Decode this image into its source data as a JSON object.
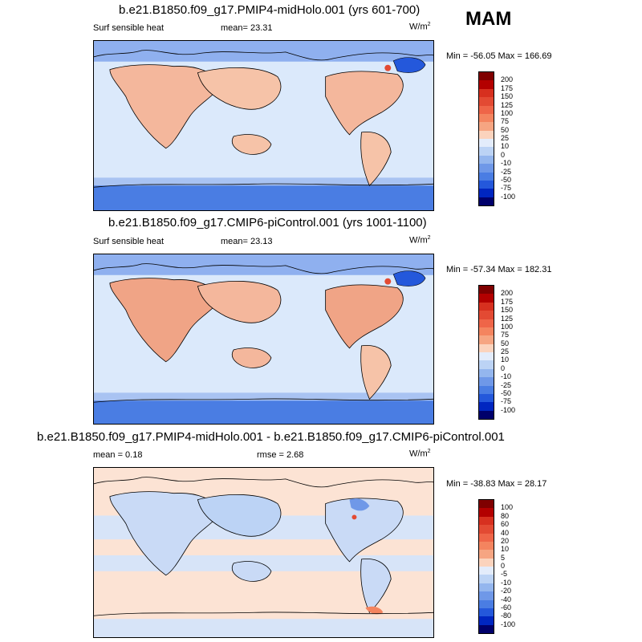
{
  "season": "MAM",
  "panels": [
    {
      "id": "midholo",
      "title": "b.e21.B1850.f09_g17.PMIP4-midHolo.001 (yrs 601-700)",
      "left_label": "Surf sensible heat",
      "mid_label": "mean=  23.31",
      "units": "W/m",
      "units_sup": "2",
      "minmax": "Min = -56.05 Max = 166.69",
      "colorbar_ticks": [
        "200",
        "175",
        "150",
        "125",
        "100",
        "75",
        "50",
        "25",
        "10",
        "0",
        "-10",
        "-25",
        "-50",
        "-75",
        "-100"
      ],
      "colors": [
        "#7f0000",
        "#b30000",
        "#d7301f",
        "#e34a33",
        "#ef6548",
        "#f4845f",
        "#f6a582",
        "#fbd3bd",
        "#e3ecfb",
        "#bcd3f5",
        "#94b6ee",
        "#6f98e8",
        "#4a7de3",
        "#2458db",
        "#0026c0",
        "#00006b"
      ]
    },
    {
      "id": "picontrol",
      "title": "b.e21.B1850.f09_g17.CMIP6-piControl.001 (yrs 1001-1100)",
      "left_label": "Surf sensible heat",
      "mid_label": "mean=  23.13",
      "units": "W/m",
      "units_sup": "2",
      "minmax": "Min = -57.34 Max = 182.31",
      "colorbar_ticks": [
        "200",
        "175",
        "150",
        "125",
        "100",
        "75",
        "50",
        "25",
        "10",
        "0",
        "-10",
        "-25",
        "-50",
        "-75",
        "-100"
      ],
      "colors": [
        "#7f0000",
        "#b30000",
        "#d7301f",
        "#e34a33",
        "#ef6548",
        "#f4845f",
        "#f6a582",
        "#fbd3bd",
        "#e3ecfb",
        "#bcd3f5",
        "#94b6ee",
        "#6f98e8",
        "#4a7de3",
        "#2458db",
        "#0026c0",
        "#00006b"
      ]
    },
    {
      "id": "diff",
      "title": "b.e21.B1850.f09_g17.PMIP4-midHolo.001 - b.e21.B1850.f09_g17.CMIP6-piControl.001",
      "left_label": "mean =   0.18",
      "mid_label": "rmse =   2.68",
      "units": "W/m",
      "units_sup": "2",
      "minmax": "Min = -38.83 Max =  28.17",
      "colorbar_ticks": [
        "100",
        "80",
        "60",
        "40",
        "20",
        "10",
        "5",
        "0",
        "-5",
        "-10",
        "-20",
        "-40",
        "-60",
        "-80",
        "-100"
      ],
      "colors": [
        "#7f0000",
        "#b30000",
        "#d7301f",
        "#e34a33",
        "#ef6548",
        "#f4845f",
        "#f6a582",
        "#fbd3bd",
        "#e3ecfb",
        "#bcd3f5",
        "#94b6ee",
        "#6f98e8",
        "#4a7de3",
        "#2458db",
        "#0026c0",
        "#00006b"
      ]
    }
  ],
  "chart_data": [
    {
      "type": "heatmap",
      "title": "b.e21.B1850.f09_g17.PMIP4-midHolo.001 (yrs 601-700)",
      "variable": "Surf sensible heat",
      "units": "W/m2",
      "mean": 23.31,
      "min": -56.05,
      "max": 166.69,
      "levels": [
        -100,
        -75,
        -50,
        -25,
        -10,
        0,
        10,
        25,
        50,
        75,
        100,
        125,
        150,
        175,
        200
      ]
    },
    {
      "type": "heatmap",
      "title": "b.e21.B1850.f09_g17.CMIP6-piControl.001 (yrs 1001-1100)",
      "variable": "Surf sensible heat",
      "units": "W/m2",
      "mean": 23.13,
      "min": -57.34,
      "max": 182.31,
      "levels": [
        -100,
        -75,
        -50,
        -25,
        -10,
        0,
        10,
        25,
        50,
        75,
        100,
        125,
        150,
        175,
        200
      ]
    },
    {
      "type": "heatmap",
      "title": "b.e21.B1850.f09_g17.PMIP4-midHolo.001 - b.e21.B1850.f09_g17.CMIP6-piControl.001",
      "units": "W/m2",
      "mean": 0.18,
      "rmse": 2.68,
      "min": -38.83,
      "max": 28.17,
      "levels": [
        -100,
        -80,
        -60,
        -40,
        -20,
        -10,
        -5,
        0,
        5,
        10,
        20,
        40,
        60,
        80,
        100
      ]
    }
  ]
}
